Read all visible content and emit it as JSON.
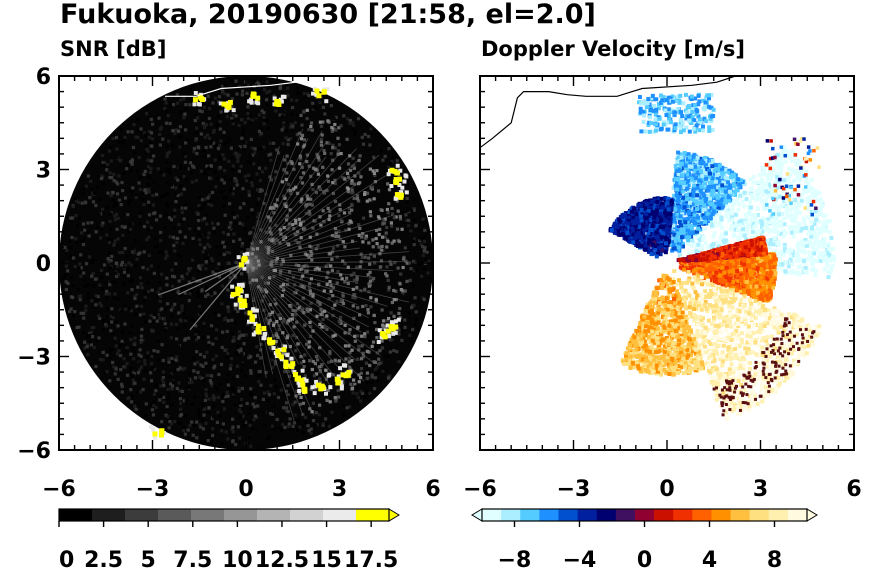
{
  "title": "Fukuoka, 20190630 [21:58, el=2.0]",
  "chart_data": [
    {
      "type": "heatmap",
      "subtitle": "SNR [dB]",
      "x_range": [
        -6,
        6
      ],
      "y_range": [
        -6,
        6
      ],
      "xticks": [
        "−6",
        "−3",
        "0",
        "3",
        "6"
      ],
      "yticks": [
        "6",
        "3",
        "0",
        "−3",
        "−6"
      ],
      "radar_range": 6,
      "colorbar": {
        "min": 0,
        "max": 18.5,
        "ticks": [
          "0",
          "2.5",
          "5",
          "7.5",
          "10",
          "12.5",
          "15",
          "17.5"
        ],
        "tick_values": [
          0,
          2.5,
          5,
          7.5,
          10,
          12.5,
          15,
          17.5
        ],
        "colors": [
          "#000000",
          "#1e1e1e",
          "#3c3c3c",
          "#5a5a5a",
          "#787878",
          "#969696",
          "#b4b4b4",
          "#d2d2d2",
          "#ebebeb",
          "#ffff00"
        ]
      },
      "strong_echo_cells": [
        [
          -0.3,
          -0.9
        ],
        [
          -0.1,
          -1.3
        ],
        [
          0.2,
          -1.7
        ],
        [
          0.5,
          -2.1
        ],
        [
          0.8,
          -2.5
        ],
        [
          1.1,
          -2.9
        ],
        [
          1.4,
          -3.3
        ],
        [
          1.7,
          -3.7
        ],
        [
          1.9,
          -4.0
        ],
        [
          2.4,
          -4.0
        ],
        [
          2.9,
          -3.8
        ],
        [
          3.2,
          -3.5
        ],
        [
          -2.8,
          -5.4
        ],
        [
          -1.5,
          5.3
        ],
        [
          -0.6,
          5.1
        ],
        [
          0.3,
          5.3
        ],
        [
          1.1,
          5.2
        ],
        [
          2.4,
          5.4
        ],
        [
          4.8,
          3.0
        ],
        [
          4.9,
          2.6
        ],
        [
          4.95,
          2.2
        ],
        [
          4.5,
          -2.3
        ],
        [
          4.7,
          -2.0
        ],
        [
          -0.1,
          0.05
        ]
      ],
      "coastline": [
        [
          -2.6,
          5.35
        ],
        [
          -1.6,
          5.35
        ],
        [
          -0.8,
          5.6
        ],
        [
          0.8,
          5.7
        ],
        [
          1.6,
          5.8
        ],
        [
          2.2,
          6.0
        ]
      ]
    },
    {
      "type": "heatmap",
      "subtitle": "Doppler Velocity [m/s]",
      "x_range": [
        -6,
        6
      ],
      "y_range": [
        -6,
        6
      ],
      "xticks": [
        "−6",
        "−3",
        "0",
        "3",
        "6"
      ],
      "yticks": [],
      "radar_range": 6,
      "colorbar": {
        "min": -10,
        "max": 10,
        "ticks": [
          "−8",
          "−4",
          "0",
          "4",
          "8"
        ],
        "tick_values": [
          -8,
          -4,
          0,
          4,
          8
        ],
        "colors": [
          "#e0ffff",
          "#aaeeff",
          "#55ccff",
          "#1e90ff",
          "#0050d0",
          "#0020a0",
          "#000070",
          "#401060",
          "#900030",
          "#cc1000",
          "#f03000",
          "#ff6000",
          "#ff9000",
          "#ffc040",
          "#ffe080",
          "#fff0b0",
          "#fffae0"
        ]
      },
      "sectors": [
        {
          "from_deg": -5,
          "to_deg": 45,
          "max_r": 5.4,
          "velocity": -9
        },
        {
          "from_deg": 45,
          "to_deg": 85,
          "max_r": 3.6,
          "velocity": -6
        },
        {
          "from_deg": 85,
          "to_deg": 150,
          "max_r": 2.1,
          "velocity": -3
        },
        {
          "from_deg": -22,
          "to_deg": 5,
          "max_r": 3.5,
          "velocity": 3
        },
        {
          "from_deg": 5,
          "to_deg": 15,
          "max_r": 3.2,
          "velocity": 1
        },
        {
          "from_deg": -70,
          "to_deg": -22,
          "max_r": 5.4,
          "velocity": 7
        },
        {
          "from_deg": -115,
          "to_deg": -70,
          "max_r": 3.6,
          "velocity": 5
        }
      ],
      "coastline": [
        [
          -6.0,
          3.7
        ],
        [
          -5.6,
          4.0
        ],
        [
          -5.0,
          4.5
        ],
        [
          -4.8,
          5.3
        ],
        [
          -4.6,
          5.5
        ],
        [
          -3.8,
          5.5
        ],
        [
          -3.2,
          5.4
        ],
        [
          -2.6,
          5.35
        ],
        [
          -1.6,
          5.35
        ],
        [
          -0.8,
          5.6
        ],
        [
          0.8,
          5.7
        ],
        [
          1.6,
          5.8
        ],
        [
          2.2,
          6.0
        ]
      ]
    }
  ]
}
